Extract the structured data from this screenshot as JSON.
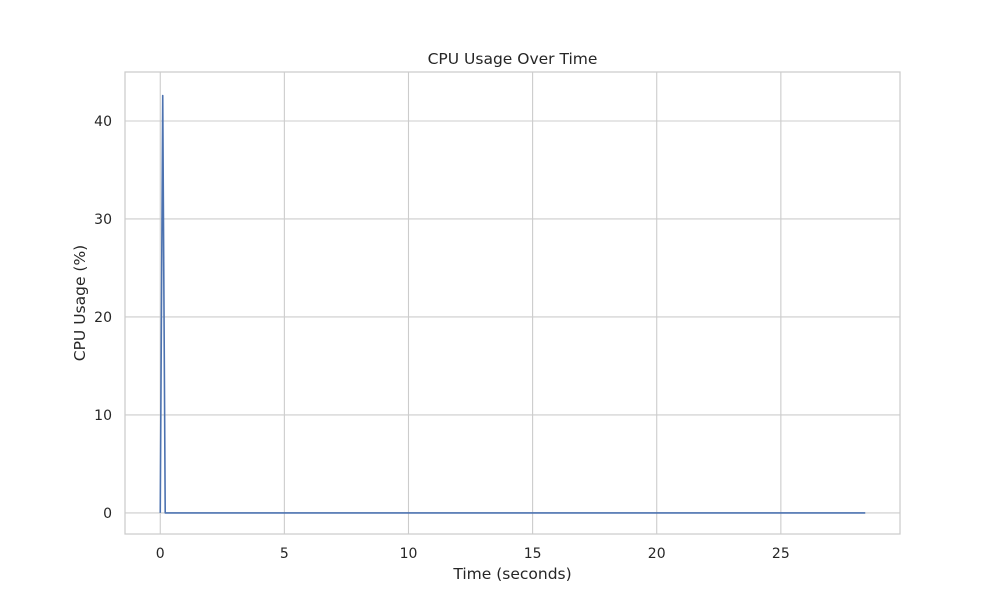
{
  "chart_data": {
    "type": "line",
    "title": "CPU Usage Over Time",
    "xlabel": "Time (seconds)",
    "ylabel": "CPU Usage (%)",
    "xlim": [
      -1.42,
      29.8
    ],
    "ylim": [
      -2.15,
      45.0
    ],
    "xticks": [
      0,
      5,
      10,
      15,
      20,
      25
    ],
    "yticks": [
      0,
      10,
      20,
      30,
      40
    ],
    "grid": true,
    "legend": "none",
    "series": [
      {
        "color": "#4c72b0",
        "x": [
          0.0,
          0.1,
          0.2,
          28.4
        ],
        "y": [
          0.0,
          42.6,
          0.0,
          0.0
        ]
      }
    ]
  }
}
